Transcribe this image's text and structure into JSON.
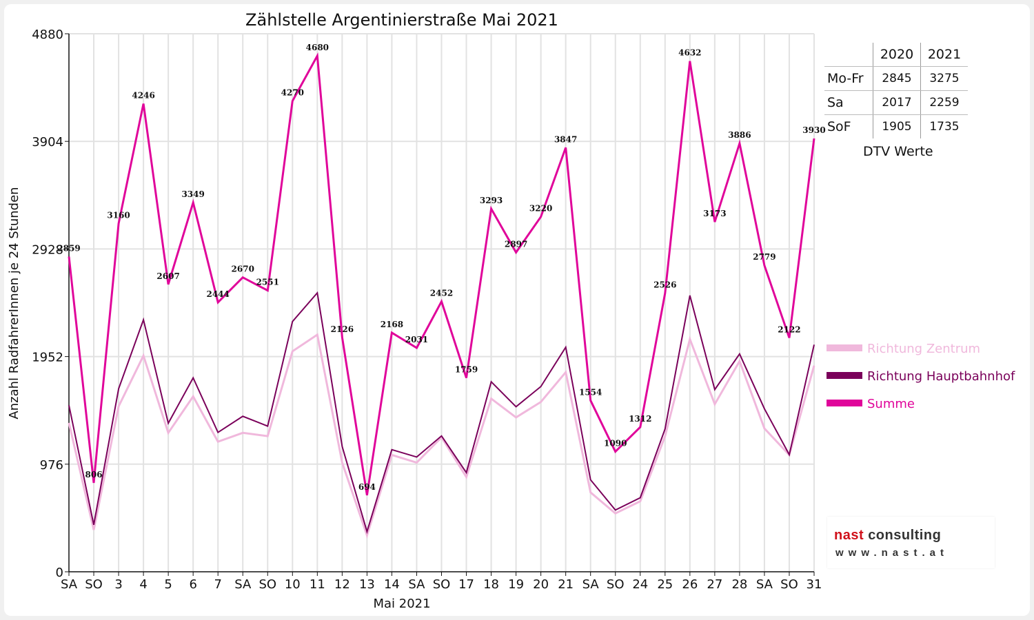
{
  "chart_data": {
    "type": "line",
    "title": "Zählstelle Argentinierstraße Mai 2021",
    "ylabel": "Anzahl RadfahrerInnen je 24 Stunden",
    "xlabel": "Mai 2021",
    "ylim": [
      0,
      4880
    ],
    "yticks": [
      "0",
      "976",
      "1952",
      "2928",
      "3904",
      "4880"
    ],
    "grid": true,
    "legend_position": "right",
    "categories": [
      "SA",
      "SO",
      "3",
      "4",
      "5",
      "6",
      "7",
      "SA",
      "SO",
      "10",
      "11",
      "12",
      "13",
      "14",
      "SA",
      "SO",
      "17",
      "18",
      "19",
      "20",
      "21",
      "SA",
      "SO",
      "24",
      "25",
      "26",
      "27",
      "28",
      "SA",
      "SO",
      "31"
    ],
    "category_colors": [
      "#111111",
      "#e00000",
      "#111111",
      "#111111",
      "#111111",
      "#111111",
      "#111111",
      "#111111",
      "#e00000",
      "#111111",
      "#111111",
      "#111111",
      "#e00000",
      "#111111",
      "#111111",
      "#e00000",
      "#111111",
      "#111111",
      "#111111",
      "#111111",
      "#111111",
      "#111111",
      "#e00000",
      "#e00000",
      "#111111",
      "#111111",
      "#111111",
      "#111111",
      "#111111",
      "#e00000",
      "#111111"
    ],
    "series": [
      {
        "name": "Richtung Zentrum",
        "color": "#f0b8dc",
        "width": 3,
        "values": [
          1350,
          380,
          1500,
          1960,
          1260,
          1590,
          1180,
          1260,
          1230,
          2000,
          2150,
          990,
          330,
          1060,
          990,
          1220,
          860,
          1570,
          1400,
          1540,
          1810,
          720,
          530,
          640,
          1230,
          2110,
          1520,
          1910,
          1300,
          1060,
          1870
        ]
      },
      {
        "name": "Richtung Hauptbahnhof",
        "color": "#7a005a",
        "width": 2,
        "values": [
          1510,
          426,
          1660,
          2286,
          1347,
          1759,
          1264,
          1410,
          1321,
          2270,
          2530,
          1136,
          364,
          1108,
          1041,
          1232,
          899,
          1723,
          1497,
          1680,
          2037,
          834,
          560,
          672,
          1296,
          2506,
          1653,
          1976,
          1479,
          1062,
          2060
        ]
      },
      {
        "name": "Summe",
        "color": "#e0059a",
        "width": 3,
        "values": [
          2859,
          806,
          3160,
          4246,
          2607,
          3349,
          2444,
          2670,
          2551,
          4270,
          4680,
          2126,
          694,
          2168,
          2031,
          2452,
          1759,
          3293,
          2897,
          3220,
          3847,
          1554,
          1090,
          1312,
          2526,
          4632,
          3173,
          3886,
          2779,
          2122,
          3930
        ]
      }
    ],
    "data_labels": [
      "2859",
      "806",
      "3160",
      "4246",
      "2607",
      "3349",
      "2444",
      "2670",
      "2551",
      "4270",
      "4680",
      "2126",
      "694",
      "2168",
      "2031",
      "2452",
      "1759",
      "3293",
      "2897",
      "3220",
      "3847",
      "1554",
      "1090",
      "1312",
      "2526",
      "4632",
      "3173",
      "3886",
      "2779",
      "2122",
      "3930"
    ]
  },
  "dtv_table": {
    "headers": [
      "",
      "2020",
      "2021"
    ],
    "rows": [
      {
        "label": "Mo-Fr",
        "v2020": "2845",
        "v2021": "3275"
      },
      {
        "label": "Sa",
        "v2020": "2017",
        "v2021": "2259"
      },
      {
        "label": "SoF",
        "v2020": "1905",
        "v2021": "1735"
      }
    ],
    "caption": "DTV Werte"
  },
  "logo": {
    "word1": "nast",
    "word2": "consulting",
    "url": "www.nast.at",
    "color1": "#d0101a",
    "color2": "#333333"
  }
}
